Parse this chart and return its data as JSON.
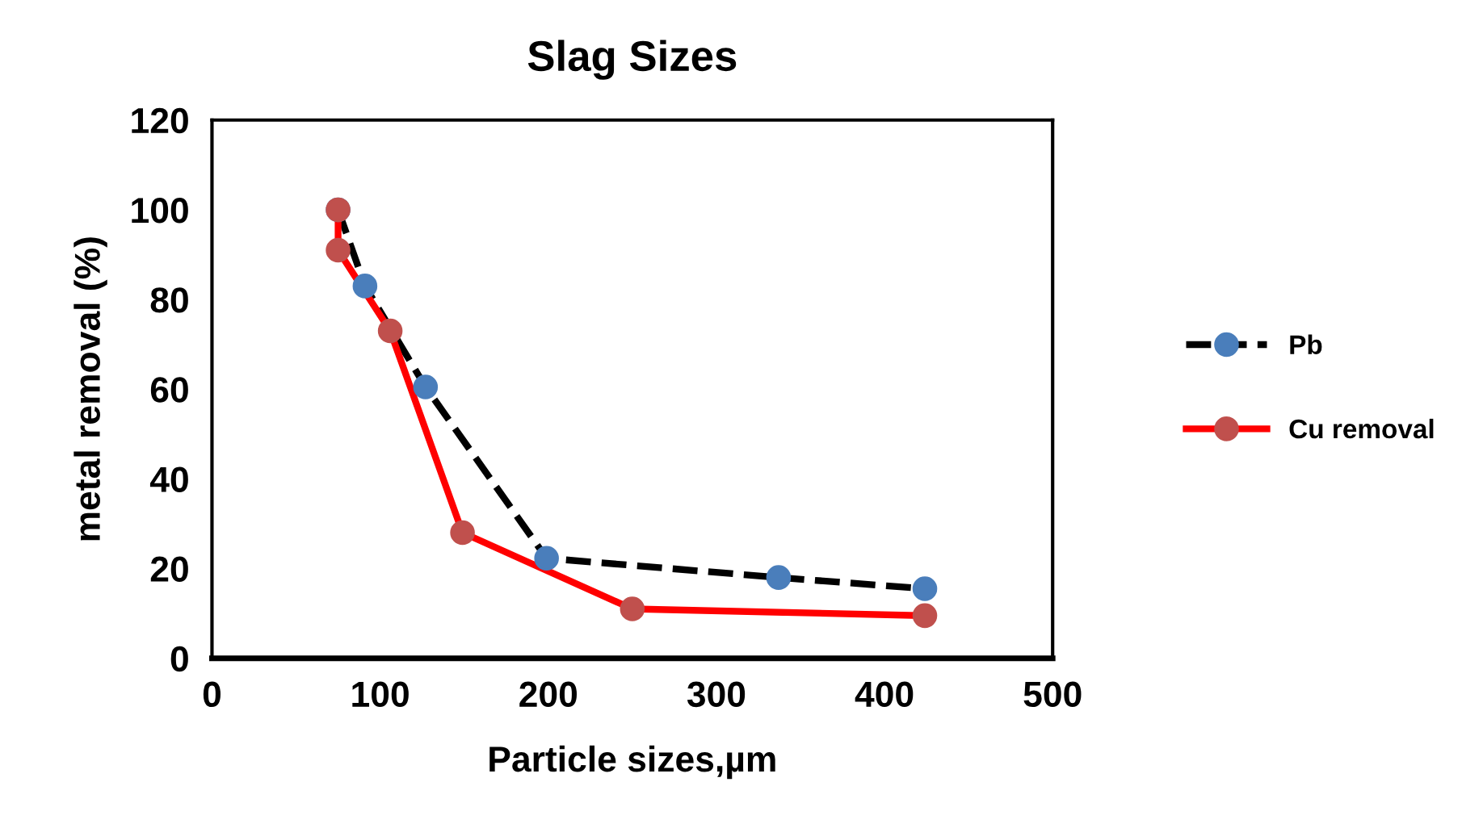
{
  "chart_data": {
    "type": "line",
    "title": "Slag Sizes",
    "xlabel": "Particle sizes,µm",
    "ylabel": "metal removal (%)",
    "series": [
      {
        "name": "Pb",
        "color": "#000000",
        "colors": [
          "#4a7ebb",
          "#4a7ebb",
          "#4a7ebb",
          "#4a7ebb",
          "#4a7ebb",
          "#4a7ebb"
        ],
        "line_style": "dashed",
        "x": [
          75,
          91,
          127,
          199,
          337,
          424
        ],
        "values": [
          100,
          83,
          60.5,
          22.3,
          18,
          15.5
        ]
      },
      {
        "name": "Cu removal",
        "color": "#ff0000",
        "colors": [
          "#c0504d",
          "#c0504d",
          "#c0504d",
          "#c0504d",
          "#c0504d",
          "#c0504d"
        ],
        "line_style": "solid",
        "x": [
          75,
          75,
          106,
          149,
          250,
          424
        ],
        "values": [
          100,
          91,
          73,
          28,
          11,
          9.5
        ]
      }
    ],
    "xlim": [
      0,
      500
    ],
    "xticks": [
      0,
      100,
      200,
      300,
      400,
      500
    ],
    "ylim": [
      0,
      120
    ],
    "yticks": [
      0,
      20,
      40,
      60,
      80,
      100,
      120
    ],
    "marker": "circle",
    "grid": false,
    "legend": "right"
  }
}
